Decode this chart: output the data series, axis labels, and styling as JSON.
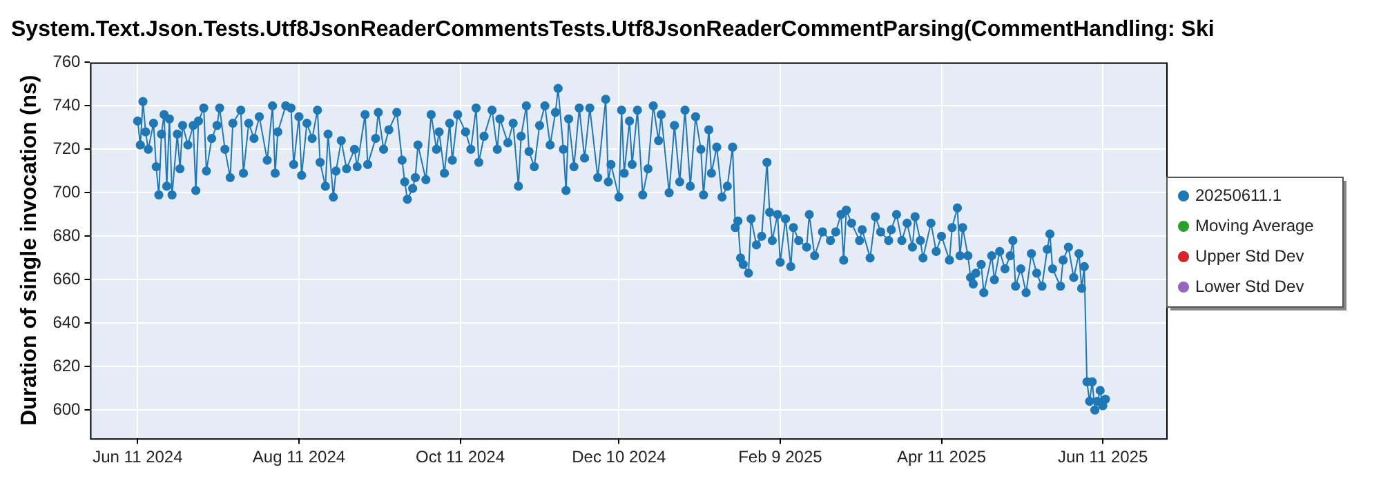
{
  "chart_data": {
    "type": "line",
    "title": "System.Text.Json.Tests.Utf8JsonReaderCommentsTests.Utf8JsonReaderCommentParsing(CommentHandling: Ski",
    "ylabel": "Duration of single invocation (ns)",
    "xlim": [
      "2024-05-24",
      "2025-07-05"
    ],
    "xticks": [
      {
        "value": "2024-06-11",
        "label": "Jun 11 2024"
      },
      {
        "value": "2024-08-11",
        "label": "Aug 11 2024"
      },
      {
        "value": "2024-10-11",
        "label": "Oct 11 2024"
      },
      {
        "value": "2024-12-10",
        "label": "Dec 10 2024"
      },
      {
        "value": "2025-02-09",
        "label": "Feb 9 2025"
      },
      {
        "value": "2025-04-11",
        "label": "Apr 11 2025"
      },
      {
        "value": "2025-06-11",
        "label": "Jun 11 2025"
      }
    ],
    "ylim": [
      587,
      760
    ],
    "yticks": [
      600,
      620,
      640,
      660,
      680,
      700,
      720,
      740,
      760
    ],
    "grid": true,
    "legend": "right",
    "marker": "circle",
    "line_style": "solid",
    "series": [
      {
        "name": "20250611.1",
        "color": "#1f77b4",
        "x": [
          "2024-06-11",
          "2024-06-12",
          "2024-06-13",
          "2024-06-14",
          "2024-06-15",
          "2024-06-17",
          "2024-06-18",
          "2024-06-19",
          "2024-06-20",
          "2024-06-21",
          "2024-06-22",
          "2024-06-23",
          "2024-06-24",
          "2024-06-26",
          "2024-06-27",
          "2024-06-28",
          "2024-06-30",
          "2024-07-02",
          "2024-07-03",
          "2024-07-04",
          "2024-07-06",
          "2024-07-07",
          "2024-07-09",
          "2024-07-11",
          "2024-07-12",
          "2024-07-14",
          "2024-07-16",
          "2024-07-17",
          "2024-07-20",
          "2024-07-21",
          "2024-07-23",
          "2024-07-25",
          "2024-07-27",
          "2024-07-30",
          "2024-08-01",
          "2024-08-02",
          "2024-08-03",
          "2024-08-06",
          "2024-08-08",
          "2024-08-09",
          "2024-08-11",
          "2024-08-12",
          "2024-08-14",
          "2024-08-16",
          "2024-08-18",
          "2024-08-19",
          "2024-08-21",
          "2024-08-22",
          "2024-08-24",
          "2024-08-25",
          "2024-08-27",
          "2024-08-29",
          "2024-09-01",
          "2024-09-02",
          "2024-09-05",
          "2024-09-06",
          "2024-09-09",
          "2024-09-10",
          "2024-09-12",
          "2024-09-14",
          "2024-09-17",
          "2024-09-19",
          "2024-09-20",
          "2024-09-21",
          "2024-09-23",
          "2024-09-24",
          "2024-09-25",
          "2024-09-28",
          "2024-09-30",
          "2024-10-02",
          "2024-10-03",
          "2024-10-05",
          "2024-10-07",
          "2024-10-08",
          "2024-10-10",
          "2024-10-13",
          "2024-10-15",
          "2024-10-17",
          "2024-10-18",
          "2024-10-20",
          "2024-10-23",
          "2024-10-25",
          "2024-10-26",
          "2024-10-29",
          "2024-10-31",
          "2024-11-02",
          "2024-11-03",
          "2024-11-05",
          "2024-11-06",
          "2024-11-08",
          "2024-11-10",
          "2024-11-12",
          "2024-11-14",
          "2024-11-16",
          "2024-11-17",
          "2024-11-19",
          "2024-11-20",
          "2024-11-21",
          "2024-11-23",
          "2024-11-25",
          "2024-11-27",
          "2024-11-29",
          "2024-12-02",
          "2024-12-05",
          "2024-12-06",
          "2024-12-07",
          "2024-12-10",
          "2024-12-11",
          "2024-12-12",
          "2024-12-14",
          "2024-12-15",
          "2024-12-17",
          "2024-12-19",
          "2024-12-21",
          "2024-12-23",
          "2024-12-25",
          "2024-12-26",
          "2024-12-29",
          "2024-12-31",
          "2025-01-02",
          "2025-01-04",
          "2025-01-06",
          "2025-01-08",
          "2025-01-10",
          "2025-01-11",
          "2025-01-13",
          "2025-01-14",
          "2025-01-16",
          "2025-01-18",
          "2025-01-20",
          "2025-01-22",
          "2025-01-23",
          "2025-01-24",
          "2025-01-25",
          "2025-01-26",
          "2025-01-28",
          "2025-01-29",
          "2025-01-31",
          "2025-02-02",
          "2025-02-04",
          "2025-02-05",
          "2025-02-06",
          "2025-02-08",
          "2025-02-09",
          "2025-02-11",
          "2025-02-13",
          "2025-02-14",
          "2025-02-16",
          "2025-02-19",
          "2025-02-20",
          "2025-02-22",
          "2025-02-25",
          "2025-02-28",
          "2025-03-02",
          "2025-03-04",
          "2025-03-05",
          "2025-03-06",
          "2025-03-08",
          "2025-03-11",
          "2025-03-12",
          "2025-03-15",
          "2025-03-17",
          "2025-03-19",
          "2025-03-22",
          "2025-03-23",
          "2025-03-25",
          "2025-03-27",
          "2025-03-29",
          "2025-03-31",
          "2025-04-01",
          "2025-04-03",
          "2025-04-04",
          "2025-04-07",
          "2025-04-09",
          "2025-04-11",
          "2025-04-14",
          "2025-04-15",
          "2025-04-17",
          "2025-04-18",
          "2025-04-19",
          "2025-04-21",
          "2025-04-22",
          "2025-04-23",
          "2025-04-24",
          "2025-04-26",
          "2025-04-27",
          "2025-04-30",
          "2025-05-01",
          "2025-05-03",
          "2025-05-05",
          "2025-05-07",
          "2025-05-08",
          "2025-05-09",
          "2025-05-11",
          "2025-05-13",
          "2025-05-15",
          "2025-05-17",
          "2025-05-19",
          "2025-05-21",
          "2025-05-22",
          "2025-05-23",
          "2025-05-26",
          "2025-05-27",
          "2025-05-29",
          "2025-05-31",
          "2025-06-02",
          "2025-06-03",
          "2025-06-04",
          "2025-06-05",
          "2025-06-06",
          "2025-06-07",
          "2025-06-08",
          "2025-06-09",
          "2025-06-10",
          "2025-06-11",
          "2025-06-12"
        ],
        "values": [
          733,
          722,
          742,
          728,
          720,
          732,
          712,
          699,
          727,
          736,
          703,
          734,
          699,
          727,
          711,
          731,
          722,
          731,
          701,
          733,
          739,
          710,
          725,
          731,
          739,
          720,
          707,
          732,
          738,
          709,
          732,
          725,
          735,
          715,
          740,
          709,
          728,
          740,
          739,
          713,
          735,
          708,
          732,
          725,
          738,
          714,
          703,
          727,
          698,
          710,
          724,
          711,
          720,
          712,
          736,
          713,
          725,
          737,
          720,
          729,
          737,
          715,
          705,
          697,
          702,
          707,
          722,
          706,
          736,
          720,
          728,
          709,
          732,
          715,
          736,
          728,
          720,
          739,
          714,
          726,
          738,
          720,
          734,
          723,
          732,
          703,
          726,
          740,
          719,
          712,
          731,
          740,
          722,
          737,
          748,
          720,
          701,
          734,
          712,
          739,
          716,
          739,
          707,
          743,
          705,
          713,
          698,
          738,
          709,
          733,
          713,
          738,
          699,
          711,
          740,
          724,
          736,
          700,
          731,
          705,
          738,
          703,
          735,
          720,
          699,
          729,
          709,
          721,
          698,
          703,
          721,
          684,
          687,
          670,
          667,
          663,
          688,
          676,
          680,
          714,
          691,
          678,
          690,
          668,
          688,
          666,
          684,
          678,
          675,
          690,
          671,
          682,
          678,
          682,
          690,
          669,
          692,
          686,
          678,
          683,
          670,
          689,
          682,
          678,
          683,
          690,
          678,
          686,
          675,
          689,
          678,
          670,
          686,
          673,
          680,
          669,
          684,
          693,
          671,
          684,
          671,
          661,
          658,
          663,
          667,
          654,
          671,
          660,
          673,
          665,
          671,
          678,
          657,
          665,
          654,
          672,
          663,
          657,
          674,
          681,
          665,
          657,
          669,
          675,
          661,
          672,
          656,
          666,
          613,
          604,
          613,
          600,
          604,
          609,
          602,
          605
        ]
      },
      {
        "name": "Moving Average",
        "color": "#2ca02c"
      },
      {
        "name": "Upper Std Dev",
        "color": "#d62728"
      },
      {
        "name": "Lower Std Dev",
        "color": "#9467bd"
      }
    ]
  }
}
